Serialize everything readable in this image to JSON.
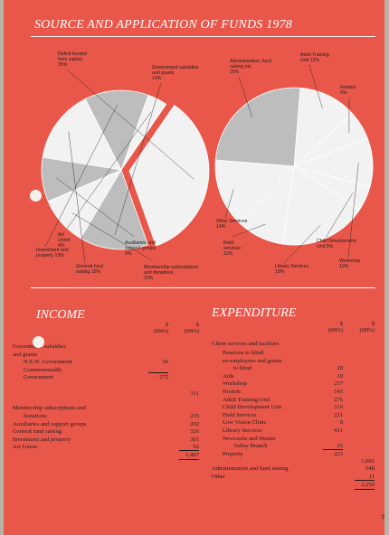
{
  "title": "SOURCE AND APPLICATION OF FUNDS 1978",
  "chart_data": [
    {
      "type": "pie",
      "title": "",
      "slices": [
        {
          "label": "Deficit funded from capital 35%",
          "value": 35,
          "color": "#f2f2f2",
          "exploded": true
        },
        {
          "label": "Government subsidies and grants 14%",
          "value": 14,
          "color": "#bdbdbd"
        },
        {
          "label": "Membership subscriptions and donations 10%",
          "value": 10,
          "color": "#f2f2f2"
        },
        {
          "label": "Auxiliaries and support groups 9%",
          "value": 9,
          "color": "#bdbdbd"
        },
        {
          "label": "General fund raising 15%",
          "value": 15,
          "color": "#f2f2f2"
        },
        {
          "label": "Investment and property 13%",
          "value": 13,
          "color": "#bdbdbd"
        },
        {
          "label": "Art Union 4%",
          "value": 4,
          "color": "#f2f2f2"
        }
      ]
    },
    {
      "type": "pie",
      "title": "",
      "slices": [
        {
          "label": "Adult Training Unit 12%",
          "value": 12,
          "color": "#f2f2f2"
        },
        {
          "label": "Hostels 6%",
          "value": 6,
          "color": "#f2f2f2"
        },
        {
          "label": "Workshop 10%",
          "value": 10,
          "color": "#f2f2f2"
        },
        {
          "label": "Child Development Unit 5%",
          "value": 5,
          "color": "#f2f2f2"
        },
        {
          "label": "Library Services 18%",
          "value": 18,
          "color": "#f2f2f2"
        },
        {
          "label": "Field services 10%",
          "value": 10,
          "color": "#f2f2f2"
        },
        {
          "label": "Other Services 14%",
          "value": 14,
          "color": "#f2f2f2"
        },
        {
          "label": "Administration, fund raising etc. 25%",
          "value": 25,
          "color": "#bdbdbd"
        }
      ]
    }
  ],
  "income": {
    "heading": "INCOME",
    "col_header": "$\n(000's)",
    "rows": [
      {
        "label": "Government subsidies",
        "indent": 0
      },
      {
        "label": "and grants",
        "indent": 0
      },
      {
        "label": "N.S.W. Government",
        "indent": 1,
        "c1": "36"
      },
      {
        "label": "Commonwealth",
        "indent": 1
      },
      {
        "label": "Government",
        "indent": 1,
        "c1": "275"
      },
      {
        "label": "",
        "indent": 0,
        "c2": "311"
      },
      {
        "label": "Membership subscriptions and",
        "indent": 0
      },
      {
        "label": "donations",
        "indent": 1,
        "c2": "235"
      },
      {
        "label": "Auxiliaries and support groups",
        "indent": 0,
        "c2": "202"
      },
      {
        "label": "General fund raising",
        "indent": 0,
        "c2": "326"
      },
      {
        "label": "Investment and property",
        "indent": 0,
        "c2": "301"
      },
      {
        "label": "Art Union",
        "indent": 0,
        "c2": "92"
      },
      {
        "label": "",
        "indent": 0,
        "c2": "1,467"
      }
    ]
  },
  "expenditure": {
    "heading": "EXPENDITURE",
    "col_header": "$\n(000's)",
    "rows": [
      {
        "label": "Client services and facilities",
        "indent": 0
      },
      {
        "label": "Pensions to blind",
        "indent": 1
      },
      {
        "label": "ex-employees and grants",
        "indent": 1
      },
      {
        "label": "to blind",
        "indent": 2,
        "c1": "28"
      },
      {
        "label": "Aids",
        "indent": 1,
        "c1": "18"
      },
      {
        "label": "Workshop",
        "indent": 1,
        "c1": "217"
      },
      {
        "label": "Hostels",
        "indent": 1,
        "c1": "145"
      },
      {
        "label": "Adult Training Unit",
        "indent": 1,
        "c1": "276"
      },
      {
        "label": "Child Development Unit",
        "indent": 1,
        "c1": "119"
      },
      {
        "label": "Field Services",
        "indent": 1,
        "c1": "221"
      },
      {
        "label": "Low Vision Clinic",
        "indent": 1,
        "c1": "8"
      },
      {
        "label": "Library Services",
        "indent": 1,
        "c1": "411"
      },
      {
        "label": "Newcastle and Hunter",
        "indent": 1
      },
      {
        "label": "Valley Branch",
        "indent": 2,
        "c1": "25"
      },
      {
        "label": "Property",
        "indent": 1,
        "c1": "223"
      },
      {
        "label": "",
        "indent": 0,
        "c2": "1,691"
      },
      {
        "label": "Administration and fund raising",
        "indent": 0,
        "c2": "548"
      },
      {
        "label": "Other",
        "indent": 0,
        "c2": "11"
      },
      {
        "label": "",
        "indent": 0,
        "c2": "2,250"
      }
    ]
  },
  "page_number": "3",
  "colors": {
    "page": "#e9574a",
    "slice_light": "#f2f2f2",
    "slice_grey": "#bdbdbd",
    "ink": "#1e1e1e"
  }
}
